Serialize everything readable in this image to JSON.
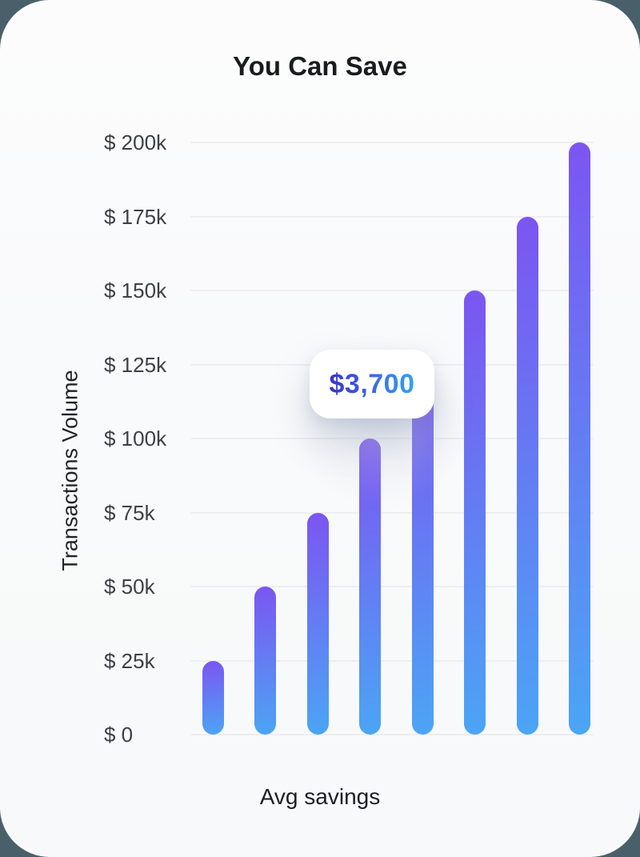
{
  "chart_data": {
    "type": "bar",
    "title": "You Can Save",
    "xlabel": "Avg savings",
    "ylabel": "Transactions Volume",
    "ylim": [
      0,
      200000
    ],
    "grid": true,
    "legend": "none",
    "y_tick_labels": [
      "$ 0",
      "$ 25k",
      "$ 50k",
      "$ 75k",
      "$ 100k",
      "$ 125k",
      "$ 150k",
      "$ 175k",
      "$ 200k"
    ],
    "y_tick_values": [
      0,
      25000,
      50000,
      75000,
      100000,
      125000,
      150000,
      175000,
      200000
    ],
    "values": [
      25000,
      50000,
      75000,
      100000,
      125000,
      150000,
      175000,
      200000
    ],
    "tooltip": {
      "label": "$3,700",
      "attached_bar_index": 4
    },
    "colors": {
      "desktop_background": "#49606A",
      "card_background": "#F9FAFB",
      "gridline": "#EEEEF1",
      "bar_gradient_top": "#7C55F1",
      "bar_gradient_bottom": "#4BA5F5",
      "tooltip_text_start": "#3634CE",
      "tooltip_text_end": "#2EA4F7",
      "title_text": "#1A1B1E",
      "tick_text": "#3E4045"
    }
  }
}
